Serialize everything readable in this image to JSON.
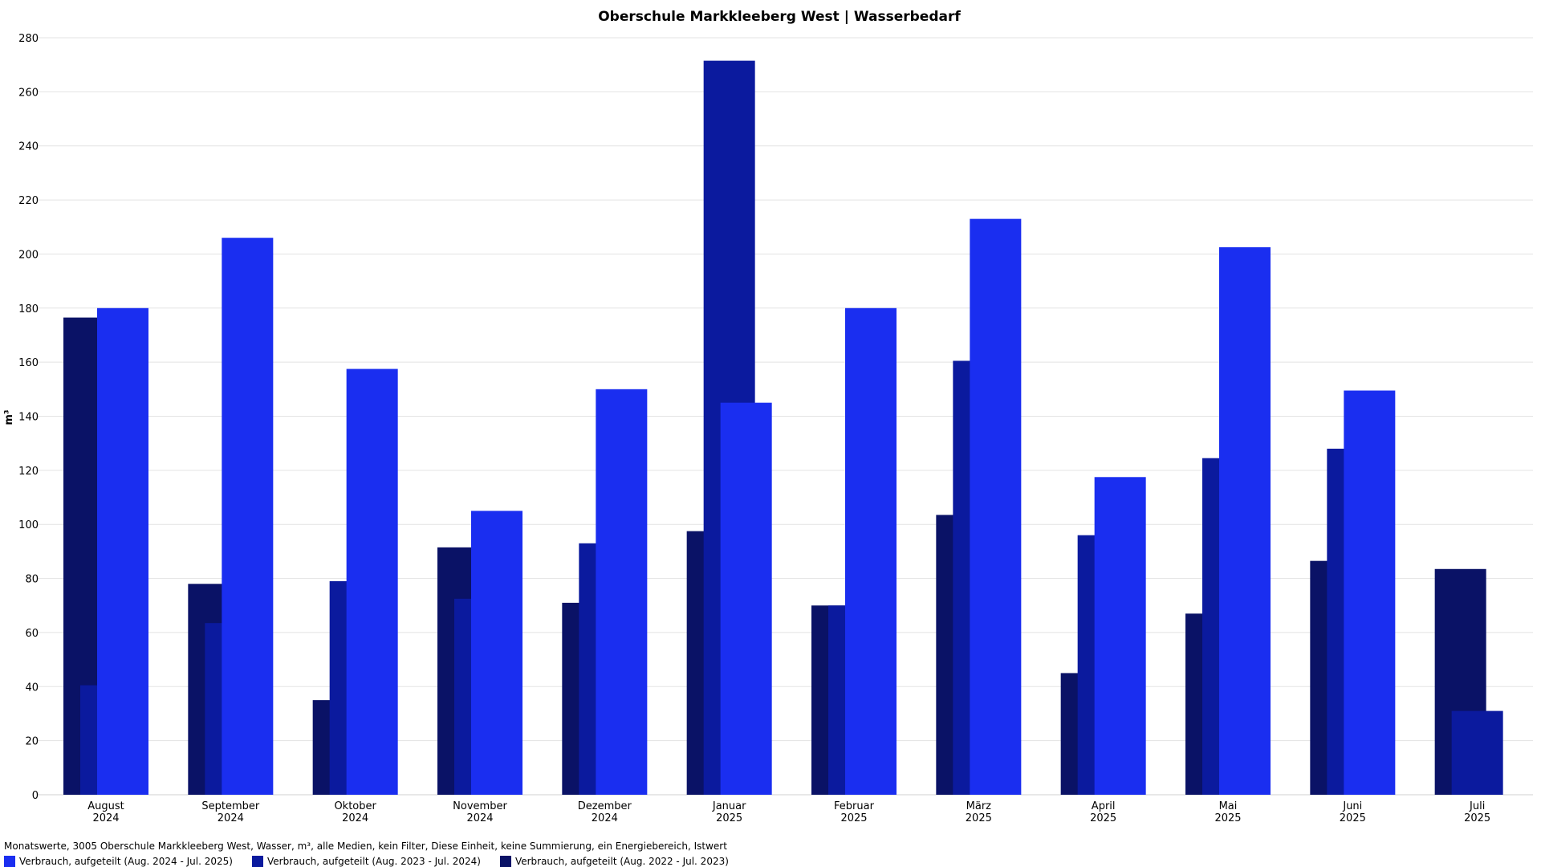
{
  "chart_data": {
    "type": "bar",
    "title": "Oberschule Markkleeberg West | Wasserbedarf",
    "ylabel": "m³",
    "ylim": [
      0,
      280
    ],
    "y_ticks": [
      "0",
      "20",
      "40",
      "60",
      "80",
      "100",
      "120",
      "140",
      "160",
      "180",
      "200",
      "220",
      "240",
      "260",
      "280"
    ],
    "grid": true,
    "legend_position": "bottom-left",
    "categories": [
      [
        "August",
        "2024"
      ],
      [
        "September",
        "2024"
      ],
      [
        "Oktober",
        "2024"
      ],
      [
        "November",
        "2024"
      ],
      [
        "Dezember",
        "2024"
      ],
      [
        "Januar",
        "2025"
      ],
      [
        "Februar",
        "2025"
      ],
      [
        "März",
        "2025"
      ],
      [
        "April",
        "2025"
      ],
      [
        "Mai",
        "2025"
      ],
      [
        "Juni",
        "2025"
      ],
      [
        "Juli",
        "2025"
      ]
    ],
    "series": [
      {
        "name": "Verbrauch, aufgeteilt (Aug. 2022 - Jul. 2023)",
        "color": "#0a1266",
        "values": [
          176.5,
          78,
          35,
          91.5,
          71,
          97.5,
          70,
          103.5,
          45,
          67,
          86.5,
          83.5
        ]
      },
      {
        "name": "Verbrauch, aufgeteilt (Aug. 2023 - Jul. 2024)",
        "color": "#0b1a9e",
        "values": [
          40.5,
          63.5,
          79,
          72.5,
          93,
          271.5,
          70,
          160.5,
          96,
          124.5,
          128,
          31
        ]
      },
      {
        "name": "Verbrauch, aufgeteilt (Aug. 2024 - Jul. 2025)",
        "color": "#1a2ef0",
        "values": [
          180,
          206,
          157.5,
          105,
          150,
          145,
          180,
          213,
          117.5,
          202.5,
          149.5,
          null
        ]
      }
    ]
  },
  "footer": {
    "description": "Monatswerte, 3005 Oberschule Markkleeberg West, Wasser, m³, alle Medien, kein Filter, Diese Einheit, keine Summierung, ein Energiebereich, Istwert"
  },
  "legend": {
    "items": [
      {
        "label": "Verbrauch, aufgeteilt (Aug. 2024 - Jul. 2025)",
        "color": "#1a2ef0"
      },
      {
        "label": "Verbrauch, aufgeteilt (Aug. 2023 - Jul. 2024)",
        "color": "#0b1a9e"
      },
      {
        "label": "Verbrauch, aufgeteilt (Aug. 2022 - Jul. 2023)",
        "color": "#0a1266"
      }
    ]
  }
}
